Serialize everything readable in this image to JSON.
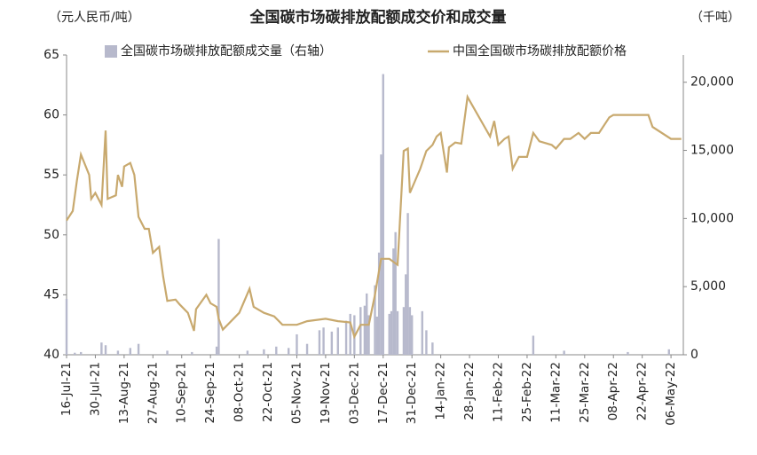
{
  "chart_data": {
    "type": "bar+line",
    "title": "全国碳市场碳排放配额成交价和成交量",
    "y_label": "（元人民币/吨）",
    "y2_label": "（千吨）",
    "ylim": [
      40,
      65
    ],
    "yticks": [
      40,
      45,
      50,
      55,
      60,
      65
    ],
    "y2lim": [
      0,
      22000
    ],
    "y2ticks": [
      0,
      {
        "value": 5000,
        "label": "5,000"
      },
      {
        "value": 10000,
        "label": "10,000"
      },
      {
        "value": 15000,
        "label": "15,000"
      },
      {
        "value": 20000,
        "label": "20,000"
      }
    ],
    "xlim": [
      "2021-07-16",
      "2022-05-12"
    ],
    "xticks": [
      {
        "value": "2021-07-16",
        "label": "16-Jul-21"
      },
      {
        "value": "2021-07-30",
        "label": "30-Jul-21"
      },
      {
        "value": "2021-08-13",
        "label": "13-Aug-21"
      },
      {
        "value": "2021-08-27",
        "label": "27-Aug-21"
      },
      {
        "value": "2021-09-10",
        "label": "10-Sep-21"
      },
      {
        "value": "2021-09-24",
        "label": "24-Sep-21"
      },
      {
        "value": "2021-10-08",
        "label": "08-Oct-21"
      },
      {
        "value": "2021-10-22",
        "label": "22-Oct-21"
      },
      {
        "value": "2021-11-05",
        "label": "05-Nov-21"
      },
      {
        "value": "2021-11-19",
        "label": "19-Nov-21"
      },
      {
        "value": "2021-12-03",
        "label": "03-Dec-21"
      },
      {
        "value": "2021-12-17",
        "label": "17-Dec-21"
      },
      {
        "value": "2021-12-31",
        "label": "31-Dec-21"
      },
      {
        "value": "2022-01-14",
        "label": "14-Jan-22"
      },
      {
        "value": "2022-01-28",
        "label": "28-Jan-22"
      },
      {
        "value": "2022-02-11",
        "label": "11-Feb-22"
      },
      {
        "value": "2022-02-25",
        "label": "25-Feb-22"
      },
      {
        "value": "2022-03-11",
        "label": "11-Mar-22"
      },
      {
        "value": "2022-03-25",
        "label": "25-Mar-22"
      },
      {
        "value": "2022-04-08",
        "label": "08-Apr-22"
      },
      {
        "value": "2022-04-22",
        "label": "22-Apr-22"
      },
      {
        "value": "2022-05-06",
        "label": "06-May-22"
      }
    ],
    "series": [
      {
        "name": "全国碳市场碳排放配额成交量（右轴）",
        "type": "bar",
        "axis": "y2",
        "color": "#b7b9cc",
        "x": [
          "2021-07-16",
          "2021-07-20",
          "2021-07-23",
          "2021-08-02",
          "2021-08-04",
          "2021-08-10",
          "2021-08-16",
          "2021-08-20",
          "2021-09-03",
          "2021-09-15",
          "2021-09-27",
          "2021-09-28",
          "2021-10-12",
          "2021-10-20",
          "2021-10-26",
          "2021-11-01",
          "2021-11-05",
          "2021-11-10",
          "2021-11-16",
          "2021-11-18",
          "2021-11-22",
          "2021-11-25",
          "2021-11-29",
          "2021-12-01",
          "2021-12-03",
          "2021-12-06",
          "2021-12-08",
          "2021-12-09",
          "2021-12-10",
          "2021-12-13",
          "2021-12-14",
          "2021-12-15",
          "2021-12-16",
          "2021-12-17",
          "2021-12-20",
          "2021-12-21",
          "2021-12-22",
          "2021-12-23",
          "2021-12-24",
          "2021-12-27",
          "2021-12-28",
          "2021-12-29",
          "2021-12-30",
          "2021-12-31",
          "2022-01-05",
          "2022-01-07",
          "2022-01-10",
          "2022-02-28",
          "2022-03-15",
          "2022-04-15",
          "2022-05-05"
        ],
        "values": [
          4100,
          150,
          200,
          900,
          700,
          300,
          500,
          800,
          300,
          200,
          600,
          8500,
          300,
          400,
          600,
          500,
          1500,
          800,
          1800,
          2000,
          1700,
          2000,
          2500,
          3000,
          2900,
          3500,
          3600,
          4500,
          2900,
          5100,
          2800,
          7500,
          14700,
          20600,
          3000,
          3200,
          7800,
          9000,
          3200,
          3500,
          5900,
          10400,
          3500,
          2900,
          3200,
          1800,
          900,
          1400,
          300,
          200,
          400
        ]
      },
      {
        "name": "中国全国碳市场碳排放配额价格",
        "type": "line",
        "axis": "y",
        "color": "#c8a96e",
        "x": [
          "2021-07-16",
          "2021-07-19",
          "2021-07-21",
          "2021-07-23",
          "2021-07-27",
          "2021-07-28",
          "2021-07-30",
          "2021-08-02",
          "2021-08-04",
          "2021-08-05",
          "2021-08-09",
          "2021-08-10",
          "2021-08-12",
          "2021-08-13",
          "2021-08-16",
          "2021-08-18",
          "2021-08-20",
          "2021-08-23",
          "2021-08-25",
          "2021-08-27",
          "2021-08-30",
          "2021-09-01",
          "2021-09-03",
          "2021-09-07",
          "2021-09-09",
          "2021-09-13",
          "2021-09-15",
          "2021-09-16",
          "2021-09-17",
          "2021-09-22",
          "2021-09-24",
          "2021-09-27",
          "2021-09-28",
          "2021-09-30",
          "2021-10-08",
          "2021-10-13",
          "2021-10-15",
          "2021-10-20",
          "2021-10-25",
          "2021-10-29",
          "2021-11-05",
          "2021-11-10",
          "2021-11-19",
          "2021-11-25",
          "2021-12-01",
          "2021-12-03",
          "2021-12-06",
          "2021-12-10",
          "2021-12-13",
          "2021-12-16",
          "2021-12-20",
          "2021-12-24",
          "2021-12-27",
          "2021-12-29",
          "2021-12-30",
          "2022-01-04",
          "2022-01-07",
          "2022-01-10",
          "2022-01-12",
          "2022-01-14",
          "2022-01-17",
          "2022-01-18",
          "2022-01-21",
          "2022-01-24",
          "2022-01-27",
          "2022-02-07",
          "2022-02-09",
          "2022-02-11",
          "2022-02-14",
          "2022-02-16",
          "2022-02-18",
          "2022-02-21",
          "2022-02-25",
          "2022-02-28",
          "2022-03-03",
          "2022-03-09",
          "2022-03-11",
          "2022-03-15",
          "2022-03-18",
          "2022-03-22",
          "2022-03-25",
          "2022-03-28",
          "2022-04-01",
          "2022-04-06",
          "2022-04-08",
          "2022-04-13",
          "2022-04-20",
          "2022-04-25",
          "2022-04-27",
          "2022-05-06",
          "2022-05-11"
        ],
        "values": [
          51.2,
          52,
          54.5,
          56.7,
          55,
          53,
          53.5,
          52.5,
          58.7,
          53,
          53.3,
          55,
          54,
          55.7,
          56,
          55,
          51.5,
          50.5,
          50.5,
          48.5,
          49,
          46.5,
          44.5,
          44.6,
          44.2,
          43.5,
          42.5,
          42,
          43.8,
          45,
          44.3,
          44,
          43,
          42.1,
          43.5,
          45.5,
          44,
          43.5,
          43.2,
          42.5,
          42.5,
          42.8,
          43,
          42.8,
          42.7,
          41.5,
          42.5,
          42.5,
          45,
          48,
          48,
          47.5,
          57,
          57.2,
          53.5,
          55.5,
          57,
          57.5,
          58.2,
          58.5,
          55.2,
          57.3,
          57.7,
          57.6,
          61.5,
          58.2,
          59.5,
          57.5,
          58,
          58.2,
          55.5,
          56.5,
          56.5,
          58.5,
          57.8,
          57.5,
          57.2,
          58,
          58,
          58.5,
          58,
          58.5,
          58.5,
          59.8,
          60,
          60,
          60,
          60,
          59,
          58,
          58
        ]
      }
    ]
  }
}
